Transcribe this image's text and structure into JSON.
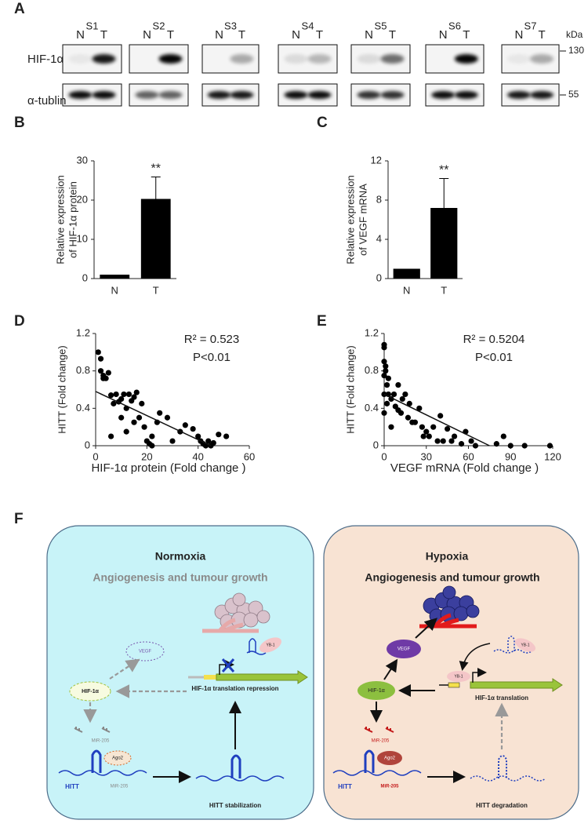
{
  "panel_labels": [
    "A",
    "B",
    "C",
    "D",
    "E",
    "F"
  ],
  "blot": {
    "samples": [
      "S1",
      "S2",
      "S3",
      "S4",
      "S5",
      "S6",
      "S7"
    ],
    "lanes": [
      "N",
      "T"
    ],
    "rows": [
      "HIF-1α",
      "α-tublin"
    ],
    "unit": "kDa",
    "markers": [
      "130",
      "55"
    ]
  },
  "chart_data": [
    {
      "type": "bar",
      "y_label": [
        "Relative expression",
        "of HIF-1α protein"
      ],
      "categories": [
        "N",
        "T"
      ],
      "values": [
        1,
        20.3
      ],
      "errors": [
        0,
        5.6
      ],
      "color": "#000000",
      "annotation": "**",
      "ylim": [
        0,
        30
      ],
      "yticks": [
        0,
        10,
        20,
        30
      ]
    },
    {
      "type": "bar",
      "y_label": [
        "Relative expression",
        "of VEGF mRNA"
      ],
      "categories": [
        "N",
        "T"
      ],
      "values": [
        1,
        7.2
      ],
      "errors": [
        0,
        3.0
      ],
      "color": "#000000",
      "annotation": "**",
      "ylim": [
        0,
        12
      ],
      "yticks": [
        0,
        4,
        8,
        12
      ]
    },
    {
      "type": "scatter",
      "x_label": "HIF-1α protein (Fold change )",
      "y_label": "HITT (Fold change)",
      "annotations": [
        "R² = 0.523",
        "P<0.01"
      ],
      "color": "#000000",
      "x": [
        1,
        2,
        2,
        3,
        4,
        5,
        3,
        6,
        7,
        8,
        9,
        10,
        11,
        12,
        13,
        14,
        15,
        16,
        17,
        18,
        19,
        20,
        21,
        22,
        6,
        10,
        12,
        15,
        22,
        25,
        24,
        30,
        33,
        35,
        38,
        40,
        41,
        42,
        43,
        44,
        45,
        46,
        48,
        51,
        28
      ],
      "values": [
        1.0,
        0.93,
        0.8,
        0.75,
        0.72,
        0.78,
        0.72,
        0.54,
        0.45,
        0.55,
        0.47,
        0.5,
        0.55,
        0.4,
        0.55,
        0.48,
        0.52,
        0.57,
        0.3,
        0.45,
        0.2,
        0.05,
        0.02,
        0.0,
        0.1,
        0.3,
        0.15,
        0.25,
        0.1,
        0.35,
        0.25,
        0.05,
        0.15,
        0.22,
        0.18,
        0.1,
        0.05,
        0.02,
        0.0,
        0.05,
        0.0,
        0.03,
        0.12,
        0.1,
        0.3
      ],
      "trendline": {
        "x": [
          0,
          45
        ],
        "values": [
          0.58,
          0
        ]
      },
      "xlim": [
        0,
        60
      ],
      "xticks": [
        0,
        20,
        40,
        60
      ],
      "ylim": [
        0,
        1.2
      ],
      "yticks": [
        0,
        0.4,
        0.8,
        1.2
      ]
    },
    {
      "type": "scatter",
      "x_label": "VEGF mRNA (Fold change )",
      "y_label": "HITT (Fold change)",
      "annotations": [
        "R² = 0.5204",
        "P<0.01"
      ],
      "color": "#000000",
      "x": [
        0,
        0,
        0,
        1,
        0,
        1,
        2,
        0,
        3,
        2,
        0,
        5,
        7,
        8,
        10,
        12,
        15,
        17,
        13,
        18,
        20,
        22,
        25,
        27,
        28,
        30,
        32,
        35,
        38,
        40,
        42,
        45,
        48,
        50,
        55,
        58,
        62,
        65,
        80,
        85,
        90,
        100,
        118,
        5,
        10,
        3
      ],
      "values": [
        1.08,
        1.05,
        0.9,
        0.85,
        0.75,
        0.8,
        0.65,
        0.55,
        0.55,
        0.45,
        0.35,
        0.5,
        0.55,
        0.42,
        0.38,
        0.35,
        0.55,
        0.3,
        0.5,
        0.45,
        0.25,
        0.25,
        0.4,
        0.2,
        0.1,
        0.15,
        0.1,
        0.2,
        0.05,
        0.32,
        0.05,
        0.18,
        0.05,
        0.1,
        0.02,
        0.15,
        0.05,
        0.0,
        0.02,
        0.1,
        0.0,
        0.0,
        0.0,
        0.2,
        0.65,
        0.72
      ],
      "trendline": {
        "x": [
          0,
          75
        ],
        "values": [
          0.55,
          0
        ]
      },
      "xlim": [
        0,
        120
      ],
      "xticks": [
        0,
        30,
        60,
        90,
        120
      ],
      "ylim": [
        0,
        1.2
      ],
      "yticks": [
        0,
        0.4,
        0.8,
        1.2
      ]
    }
  ],
  "diagram": {
    "normoxia": {
      "title": "Normoxia",
      "outcome": "Angiogenesis and tumour growth",
      "vegf": "VEGF",
      "hif": "HIF-1α",
      "mir_free": "MiR-205",
      "ago2": "Ago2",
      "hitt": "HITT",
      "mir_bound": "MiR-205",
      "hitt_state": "HITT stabilization",
      "translation": "HIF-1α translation repression",
      "yb1": "YB-1"
    },
    "hypoxia": {
      "title": "Hypoxia",
      "outcome": "Angiogenesis and tumour growth",
      "vegf": "VEGF",
      "hif": "HIF-1α",
      "mir_free": "MiR-205",
      "ago2": "Ago2",
      "hitt": "HITT",
      "mir_bound": "MiR-205",
      "hitt_state": "HITT degradation",
      "translation": "HIF-1α translation",
      "yb1_free": "YB-1",
      "yb1_bound": "YB-1"
    }
  }
}
